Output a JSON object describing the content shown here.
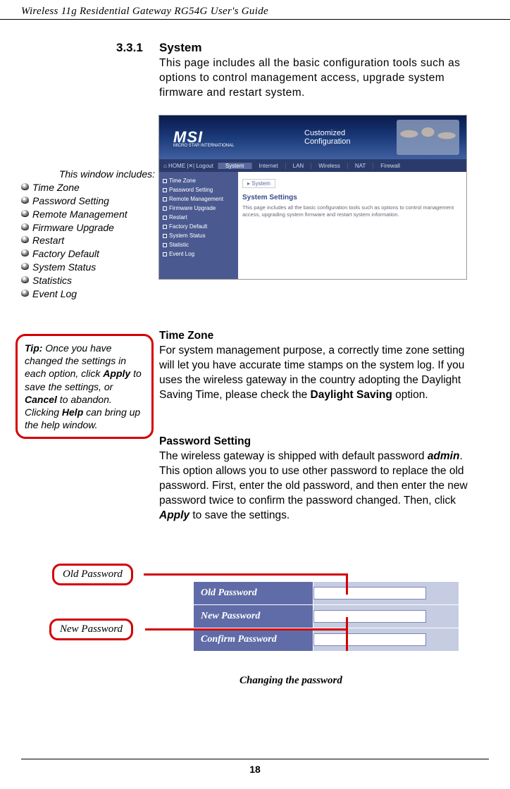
{
  "header": "Wireless 11g Residential Gateway RG54G User's Guide",
  "section_num": "3.3.1",
  "section_title": "System",
  "intro": "This page includes all the basic configuration tools such as options to control management access, upgrade system firmware and restart system.",
  "screenshot": {
    "logo": "MSI",
    "logo_sub": "MICRO STAR INTERNATIONAL",
    "banner_text": "Customized Configuration",
    "tab_home": "⌂ HOME  |✕| Logout",
    "tabs": [
      "System",
      "Internet",
      "LAN",
      "Wireless",
      "NAT",
      "Firewall"
    ],
    "sidebar": [
      "Time Zone",
      "Password Setting",
      "Remote Management",
      "Firmware Upgrade",
      "Restart",
      "Factory Default",
      "System Status",
      "Statistic",
      "Event Log"
    ],
    "crumb": "▸ System",
    "main_h": "System Settings",
    "main_desc": "This page includes all the basic configuration tools such as options to control management access, upgrading system firmware and restart system information."
  },
  "includes_title": "This window includes:",
  "includes": [
    "Time Zone",
    "Password Setting",
    "Remote Management",
    "Firmware Upgrade",
    "Restart",
    "Factory Default",
    "System Status",
    "Statistics",
    "Event Log"
  ],
  "tip_label": "Tip:",
  "tip_1": " Once you have changed the settings in each option, click ",
  "tip_apply": "Apply",
  "tip_2": " to save the settings, or ",
  "tip_cancel": "Cancel",
  "tip_3": " to abandon.  Clicking ",
  "tip_help": "Help",
  "tip_4": " can bring up the help window.",
  "tz_h": "Time Zone",
  "tz_body_1": "For system management purpose, a correctly time zone setting will let you have accurate time stamps on the system log.  If you uses the wireless gateway in the country adopting the Daylight Saving Time, please check the ",
  "tz_bold": "Daylight Saving",
  "tz_body_2": " option.",
  "pw_h": "Password Setting",
  "pw_body_1": "The wireless gateway is shipped with default password ",
  "pw_admin": "admin",
  "pw_body_2": ".  This option allows you to use other password to replace the old password.  First, enter the old password, and then enter the new password twice to confirm the password changed.  Then, click ",
  "pw_apply": "Apply",
  "pw_body_3": " to save the settings.",
  "callout_old": "Old Password",
  "callout_new": "New Password",
  "table": {
    "old": "Old Password",
    "new": "New Password",
    "confirm": "Confirm Password"
  },
  "caption": "Changing the password",
  "page_num": "18"
}
